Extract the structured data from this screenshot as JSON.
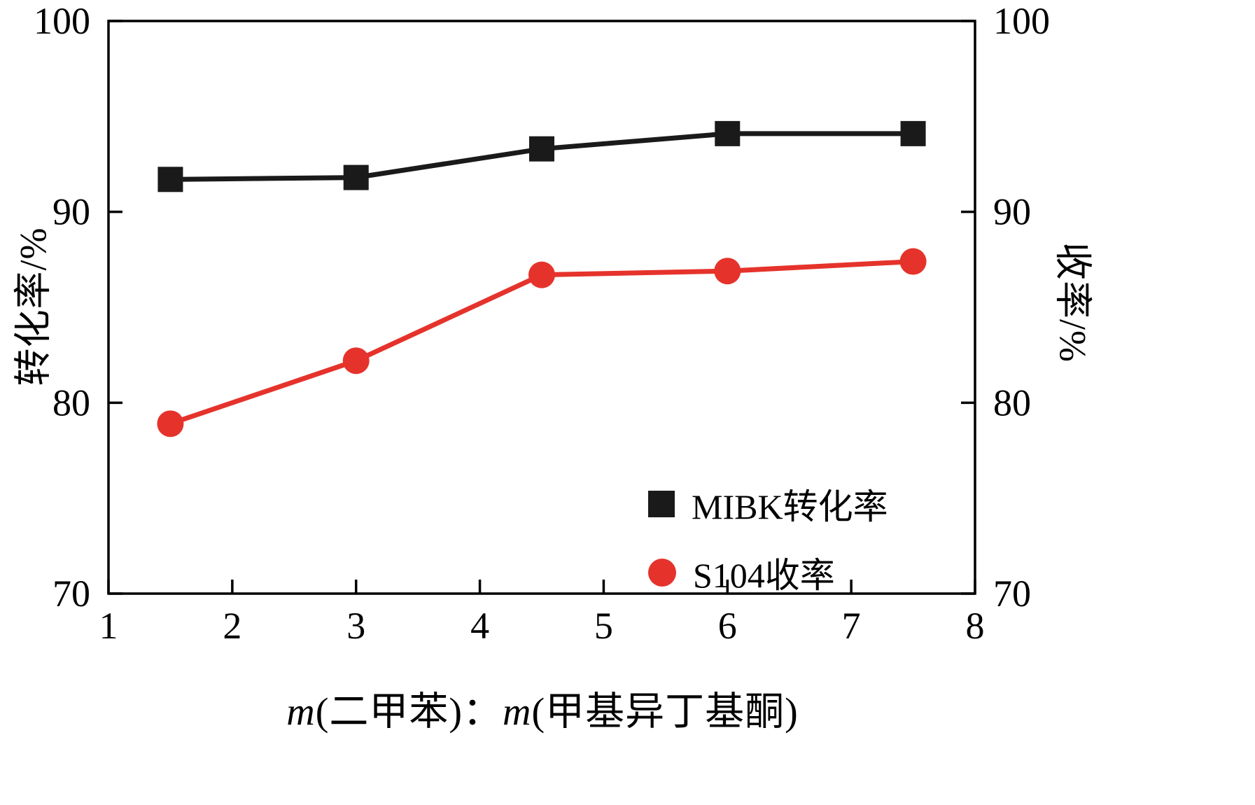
{
  "chart_data": {
    "type": "line",
    "x": [
      1.5,
      3,
      4.5,
      6,
      7.5
    ],
    "series": [
      {
        "name": "MIBK转化率",
        "marker": "square",
        "color": "#1a1a1a",
        "values": [
          91.7,
          91.8,
          93.3,
          94.1,
          94.1
        ]
      },
      {
        "name": "S104收率",
        "marker": "circle",
        "color": "#e5332c",
        "values": [
          78.9,
          82.2,
          86.7,
          86.9,
          87.4
        ]
      }
    ],
    "title": "",
    "xlabel": "m(二甲苯)：m(甲基异丁基酮)",
    "xlabel_parts": [
      {
        "text": "m",
        "italic": true
      },
      {
        "text": "(二甲苯)：",
        "italic": false
      },
      {
        "text": "m",
        "italic": true
      },
      {
        "text": "(甲基异丁基酮)",
        "italic": false
      }
    ],
    "ylabel_left": "转化率/%",
    "ylabel_right": "收率/%",
    "xlim": [
      1,
      8
    ],
    "ylim": [
      70,
      100
    ],
    "x_ticks": [
      1,
      2,
      3,
      4,
      5,
      6,
      7,
      8
    ],
    "y_ticks": [
      70,
      80,
      90,
      100
    ],
    "grid": false,
    "legend_position": "lower-right-inside",
    "frame_color": "#000000"
  }
}
